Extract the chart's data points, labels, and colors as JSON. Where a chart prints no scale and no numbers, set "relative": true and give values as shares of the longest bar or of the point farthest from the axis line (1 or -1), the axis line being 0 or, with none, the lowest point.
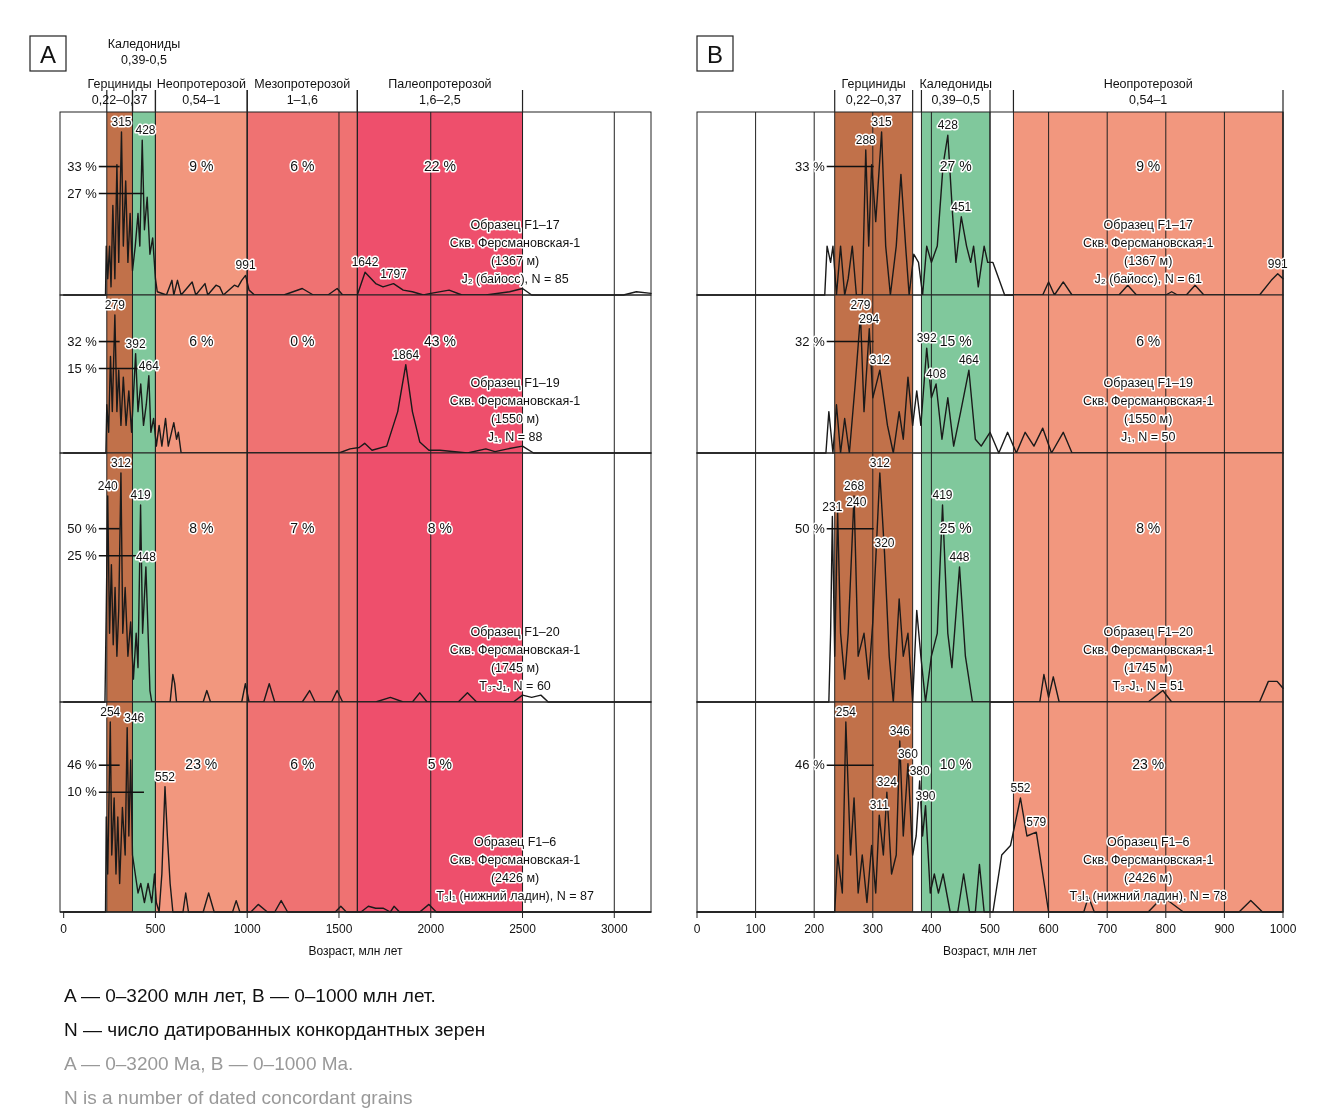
{
  "chart_data": [
    {
      "type": "line",
      "title": "A",
      "relative": true,
      "color": "#1a1a1a",
      "grid": "x",
      "tick_labels": false,
      "xlim": [
        -20,
        3200
      ],
      "xticks": [
        0,
        500,
        1000,
        1500,
        2000,
        2500,
        3000
      ],
      "x": [
        0,
        228,
        232,
        240,
        250,
        258,
        268,
        279,
        290,
        300,
        315,
        325,
        338,
        350,
        362,
        375,
        390,
        405,
        415,
        428,
        440,
        455,
        470,
        485,
        500,
        510,
        560,
        590,
        600,
        620,
        640,
        700,
        720,
        770,
        785,
        830,
        850,
        870,
        930,
        950,
        970,
        991,
        1010,
        1040,
        1200,
        1300,
        1360,
        1440,
        1490,
        1520,
        1600,
        1642,
        1700,
        1740,
        1797,
        1850,
        1900,
        1960,
        2000,
        2100,
        2170,
        2300,
        2430,
        2500,
        2550,
        3050,
        3120,
        3200
      ],
      "values": [
        0,
        0,
        0.3,
        0.1,
        0.3,
        0.05,
        0.55,
        0.1,
        0.8,
        0.2,
        1.0,
        0.3,
        0.7,
        0.2,
        0.5,
        0.15,
        0.3,
        0.5,
        0.3,
        0.95,
        0.4,
        0.6,
        0.25,
        0.35,
        0.1,
        0.02,
        0,
        0.09,
        0,
        0.09,
        0,
        0.08,
        0,
        0.07,
        0,
        0.06,
        0.05,
        0,
        0.06,
        0.05,
        0.09,
        0.12,
        0.03,
        0,
        0,
        0.04,
        0,
        0,
        0.04,
        0,
        0,
        0.14,
        0.07,
        0.05,
        0.07,
        0.03,
        0.02,
        0,
        0.01,
        0.03,
        0,
        0,
        0.02,
        0.04,
        0,
        0,
        0.02,
        0.01
      ],
      "bands": [
        {
          "axis": "x",
          "from": 235,
          "to": 375,
          "color": "#c1714a",
          "label": "33 %"
        },
        {
          "axis": "x",
          "from": 375,
          "to": 500,
          "color": "#80c89c",
          "label": "27 %"
        },
        {
          "axis": "x",
          "from": 500,
          "to": 1000,
          "color": "#f2977e",
          "label": "9 %"
        },
        {
          "axis": "x",
          "from": 1000,
          "to": 1600,
          "color": "#ef7272",
          "label": "6 %"
        },
        {
          "axis": "x",
          "from": 1600,
          "to": 2500,
          "color": "#ee4f6c",
          "label": "22 %"
        }
      ],
      "annotations": [
        "Герциниды\n0,22–0,37",
        "Каледониды\n0,39-0,5",
        "Неопротерозой\n0,54–1",
        "Мезопротерозой\n1–1,6",
        "Палеопротерозой\n1,6–2,5",
        {
          "text": "315",
          "x": 315,
          "y": 1.0
        },
        {
          "text": "428",
          "x": 428,
          "y": 0.95
        },
        {
          "text": "991",
          "x": 991,
          "y": 0.12
        },
        {
          "text": "1642",
          "x": 1642,
          "y": 0.14
        },
        {
          "text": "1797",
          "x": 1797,
          "y": 0.07
        },
        "Образец F1–17\nСкв. Ферсмановская-1\n(1367 м)\nJ₂ (байосс), N = 85"
      ]
    },
    {
      "type": "line",
      "relative": true,
      "color": "#1a1a1a",
      "grid": "x",
      "tick_labels": false,
      "xlim": [
        -20,
        3200
      ],
      "xticks": [
        0,
        500,
        1000,
        1500,
        2000,
        2500,
        3000
      ],
      "x": [
        0,
        230,
        235,
        245,
        255,
        265,
        279,
        290,
        300,
        312,
        325,
        340,
        355,
        370,
        392,
        405,
        420,
        435,
        450,
        464,
        475,
        490,
        505,
        520,
        535,
        555,
        570,
        600,
        615,
        625,
        640,
        1500,
        1560,
        1610,
        1640,
        1680,
        1760,
        1820,
        1864,
        1900,
        1940,
        1990,
        2050,
        2200,
        2300,
        2350,
        2420,
        2500,
        2560,
        3200
      ],
      "values": [
        0,
        0,
        0.35,
        0.15,
        0.7,
        0.3,
        1.0,
        0.3,
        0.6,
        0.2,
        0.55,
        0.2,
        0.45,
        0.15,
        0.72,
        0.3,
        0.5,
        0.2,
        0.35,
        0.56,
        0.15,
        0.25,
        0.05,
        0.2,
        0.05,
        0.25,
        0.05,
        0.22,
        0.1,
        0.15,
        0,
        0,
        0.03,
        0.04,
        0.07,
        0.02,
        0.05,
        0.3,
        0.64,
        0.3,
        0.08,
        0.02,
        0.02,
        0,
        0.03,
        0.01,
        0.03,
        0.05,
        0,
        0
      ],
      "bands": [
        {
          "axis": "x",
          "from": 235,
          "to": 375,
          "color": "#c1714a",
          "label": "32 %"
        },
        {
          "axis": "x",
          "from": 375,
          "to": 500,
          "color": "#80c89c",
          "label": "15 %"
        },
        {
          "axis": "x",
          "from": 500,
          "to": 1000,
          "color": "#f2977e",
          "label": "6 %"
        },
        {
          "axis": "x",
          "from": 1000,
          "to": 1600,
          "color": "#ef7272",
          "label": "0 %"
        },
        {
          "axis": "x",
          "from": 1600,
          "to": 2500,
          "color": "#ee4f6c",
          "label": "43 %"
        }
      ],
      "annotations": [
        {
          "text": "279",
          "x": 279,
          "y": 1.0
        },
        {
          "text": "392",
          "x": 392,
          "y": 0.72
        },
        {
          "text": "464",
          "x": 464,
          "y": 0.56
        },
        {
          "text": "1864",
          "x": 1864,
          "y": 0.64
        },
        "Образец F1–19\nСкв. Ферсмановская-1\n(1550 м)\nJ₁, N = 88"
      ]
    },
    {
      "type": "line",
      "relative": true,
      "color": "#1a1a1a",
      "grid": "x",
      "tick_labels": false,
      "xlim": [
        -20,
        3200
      ],
      "xticks": [
        0,
        500,
        1000,
        1500,
        2000,
        2500,
        3000
      ],
      "x": [
        0,
        225,
        232,
        240,
        250,
        260,
        270,
        280,
        290,
        300,
        312,
        322,
        335,
        350,
        365,
        380,
        395,
        405,
        419,
        430,
        448,
        460,
        470,
        480,
        580,
        595,
        605,
        615,
        760,
        780,
        800,
        970,
        990,
        1010,
        1090,
        1120,
        1150,
        1300,
        1340,
        1370,
        1460,
        1490,
        1520,
        1700,
        1780,
        1850,
        1900,
        1940,
        1980,
        2150,
        2200,
        2250,
        2450,
        2500,
        2550,
        2600,
        2640,
        3200
      ],
      "values": [
        0,
        0,
        0.4,
        0.9,
        0.3,
        0.6,
        0.25,
        0.5,
        0.2,
        0.4,
        1.0,
        0.3,
        0.5,
        0.2,
        0.35,
        0.1,
        0.3,
        0.15,
        0.86,
        0.3,
        0.59,
        0.3,
        0.05,
        0,
        0,
        0.12,
        0.08,
        0,
        0,
        0.05,
        0,
        0,
        0.08,
        0,
        0,
        0.08,
        0,
        0,
        0.05,
        0,
        0,
        0.05,
        0,
        0,
        0.02,
        0,
        0,
        0.04,
        0,
        0,
        0.04,
        0,
        0,
        0.03,
        0.02,
        0.03,
        0,
        0
      ],
      "bands": [
        {
          "axis": "x",
          "from": 235,
          "to": 375,
          "color": "#c1714a",
          "label": "50 %"
        },
        {
          "axis": "x",
          "from": 375,
          "to": 500,
          "color": "#80c89c",
          "label": "25 %"
        },
        {
          "axis": "x",
          "from": 500,
          "to": 1000,
          "color": "#f2977e",
          "label": "8 %"
        },
        {
          "axis": "x",
          "from": 1000,
          "to": 1600,
          "color": "#ef7272",
          "label": "7 %"
        },
        {
          "axis": "x",
          "from": 1600,
          "to": 2500,
          "color": "#ee4f6c",
          "label": "8 %"
        }
      ],
      "annotations": [
        {
          "text": "312",
          "x": 312,
          "y": 1.0
        },
        {
          "text": "240",
          "x": 240,
          "y": 0.9
        },
        {
          "text": "419",
          "x": 419,
          "y": 0.86
        },
        {
          "text": "448",
          "x": 448,
          "y": 0.59
        },
        "Образец F1–20\nСкв. Ферсмановская-1\n(1745 м)\nT₃-J₁, N = 60"
      ]
    },
    {
      "type": "line",
      "relative": true,
      "color": "#1a1a1a",
      "grid": "x",
      "xlabel": "Возраст, млн лет",
      "xlim": [
        -20,
        3200
      ],
      "xticks": [
        0,
        500,
        1000,
        1500,
        2000,
        2500,
        3000
      ],
      "x": [
        0,
        228,
        232,
        240,
        254,
        262,
        275,
        285,
        295,
        305,
        320,
        335,
        346,
        355,
        365,
        375,
        390,
        405,
        420,
        440,
        460,
        480,
        495,
        505,
        520,
        535,
        552,
        565,
        580,
        595,
        650,
        665,
        680,
        760,
        790,
        820,
        920,
        940,
        960,
        1020,
        1060,
        1110,
        1150,
        1185,
        1220,
        1480,
        1510,
        1540,
        1620,
        1660,
        1700,
        1740,
        1780,
        1800,
        1830,
        1940,
        1990,
        2030,
        3200
      ],
      "values": [
        0,
        0,
        0.5,
        0.2,
        1.0,
        0.3,
        0.6,
        0.2,
        0.5,
        0.15,
        0.55,
        0.3,
        0.97,
        0.4,
        0.8,
        0.3,
        0.2,
        0.1,
        0.15,
        0.05,
        0.15,
        0.05,
        0.2,
        0.05,
        0,
        0.2,
        0.66,
        0.4,
        0.15,
        0,
        0,
        0.1,
        0,
        0,
        0.1,
        0,
        0,
        0.06,
        0,
        0,
        0.04,
        0,
        0,
        0.06,
        0,
        0,
        0.03,
        0,
        0,
        0.03,
        0.02,
        0.02,
        0,
        0.03,
        0,
        0,
        0.04,
        0,
        0
      ],
      "bands": [
        {
          "axis": "x",
          "from": 235,
          "to": 375,
          "color": "#c1714a",
          "label": "46 %"
        },
        {
          "axis": "x",
          "from": 375,
          "to": 500,
          "color": "#80c89c",
          "label": "10 %"
        },
        {
          "axis": "x",
          "from": 500,
          "to": 1000,
          "color": "#f2977e",
          "label": "23 %"
        },
        {
          "axis": "x",
          "from": 1000,
          "to": 1600,
          "color": "#ef7272",
          "label": "6 %"
        },
        {
          "axis": "x",
          "from": 1600,
          "to": 2500,
          "color": "#ee4f6c",
          "label": "5 %"
        }
      ],
      "annotations": [
        {
          "text": "254",
          "x": 254,
          "y": 1.0
        },
        {
          "text": "346",
          "x": 346,
          "y": 0.97
        },
        {
          "text": "552",
          "x": 552,
          "y": 0.66
        },
        "Образец F1–6\nСкв. Ферсмановская-1\n(2426 м)\nT₃l₁ (нижний ладин), N = 87",
        "A — 0–3200 млн лет, B — 0–1000 млн лет.",
        "N — число датированных конкордантных зерен",
        "A — 0–3200 Ma, B — 0–1000 Ma.",
        "N is a number of dated concordant grains"
      ]
    },
    {
      "type": "line",
      "title": "B",
      "relative": true,
      "color": "#1a1a1a",
      "grid": "x",
      "tick_labels": false,
      "xlim": [
        0,
        1000
      ],
      "xticks": [
        0,
        100,
        200,
        300,
        400,
        500,
        600,
        700,
        800,
        900,
        1000
      ],
      "x": [
        0,
        218,
        222,
        228,
        232,
        238,
        245,
        252,
        258,
        265,
        272,
        282,
        288,
        293,
        298,
        305,
        315,
        322,
        330,
        340,
        348,
        356,
        362,
        370,
        378,
        385,
        392,
        400,
        410,
        420,
        428,
        436,
        442,
        451,
        460,
        467,
        472,
        480,
        490,
        496,
        505,
        515,
        525,
        590,
        600,
        610,
        625,
        640,
        720,
        735,
        750,
        800,
        810,
        820,
        835,
        850,
        865,
        960,
        980,
        991,
        1000
      ],
      "values": [
        0,
        0,
        0.3,
        0.2,
        0.3,
        0,
        0.3,
        0,
        0.1,
        0.3,
        0,
        0,
        0.89,
        0.3,
        0.8,
        0.45,
        1.0,
        0.3,
        0,
        0.3,
        0.74,
        0.3,
        0,
        0.25,
        0.2,
        0,
        0.3,
        0.2,
        0.3,
        0.8,
        0.98,
        0.5,
        0.2,
        0.48,
        0.3,
        0.2,
        0.3,
        0.05,
        0.3,
        0.2,
        0.2,
        0.1,
        0,
        0,
        0.08,
        0,
        0.08,
        0,
        0,
        0.06,
        0,
        0,
        0.02,
        0,
        0,
        0.06,
        0,
        0,
        0.09,
        0.13,
        0.1
      ],
      "bands": [
        {
          "axis": "x",
          "from": 235,
          "to": 368,
          "color": "#c1714a",
          "label": "33 %"
        },
        {
          "axis": "x",
          "from": 383,
          "to": 500,
          "color": "#80c89c",
          "label": "27 %"
        },
        {
          "axis": "x",
          "from": 540,
          "to": 1000,
          "color": "#f2977e",
          "label": "9 %"
        }
      ],
      "annotations": [
        "Герциниды\n0,22–0,37",
        "Каледониды\n0,39–0,5",
        "Неопротерозой\n0,54–1",
        {
          "text": "288",
          "x": 288,
          "y": 0.89
        },
        {
          "text": "315",
          "x": 315,
          "y": 1.0
        },
        {
          "text": "428",
          "x": 428,
          "y": 0.98
        },
        {
          "text": "451",
          "x": 451,
          "y": 0.48
        },
        {
          "text": "991",
          "x": 991,
          "y": 0.13
        },
        "Образец F1–17\nСкв. Ферсмановская-1\n(1367 м)\nJ₂ (байосс), N = 61"
      ]
    },
    {
      "type": "line",
      "relative": true,
      "color": "#1a1a1a",
      "grid": "x",
      "tick_labels": false,
      "xlim": [
        0,
        1000
      ],
      "xticks": [
        0,
        100,
        200,
        300,
        400,
        500,
        600,
        700,
        800,
        900,
        1000
      ],
      "x": [
        0,
        220,
        225,
        232,
        238,
        245,
        252,
        260,
        270,
        279,
        285,
        294,
        300,
        312,
        325,
        335,
        345,
        352,
        360,
        368,
        375,
        382,
        392,
        400,
        408,
        418,
        428,
        438,
        450,
        464,
        475,
        485,
        500,
        515,
        530,
        545,
        560,
        575,
        590,
        605,
        625,
        640,
        1000
      ],
      "values": [
        0,
        0,
        0.3,
        0,
        0.35,
        0,
        0.25,
        0,
        0.5,
        1.0,
        0.3,
        0.9,
        0.4,
        0.6,
        0.2,
        0,
        0.3,
        0.1,
        0.55,
        0.2,
        0.45,
        0.2,
        0.76,
        0.4,
        0.5,
        0.1,
        0.4,
        0.05,
        0.3,
        0.6,
        0.1,
        0.05,
        0.15,
        0,
        0.15,
        0,
        0.15,
        0.05,
        0.18,
        0,
        0.15,
        0,
        0
      ],
      "bands": [
        {
          "axis": "x",
          "from": 235,
          "to": 368,
          "color": "#c1714a",
          "label": "32 %"
        },
        {
          "axis": "x",
          "from": 383,
          "to": 500,
          "color": "#80c89c",
          "label": "15 %"
        },
        {
          "axis": "x",
          "from": 540,
          "to": 1000,
          "color": "#f2977e",
          "label": "6 %"
        }
      ],
      "annotations": [
        {
          "text": "279",
          "x": 279,
          "y": 1.0
        },
        {
          "text": "294",
          "x": 294,
          "y": 0.9
        },
        {
          "text": "312",
          "x": 312,
          "y": 0.6
        },
        {
          "text": "392",
          "x": 392,
          "y": 0.76
        },
        {
          "text": "408",
          "x": 408,
          "y": 0.5
        },
        {
          "text": "464",
          "x": 464,
          "y": 0.6
        },
        "Образец F1–19\nСкв. Ферсмановская-1\n(1550 м)\nJ₁, N = 50"
      ]
    },
    {
      "type": "line",
      "relative": true,
      "color": "#1a1a1a",
      "grid": "x",
      "tick_labels": false,
      "xlim": [
        0,
        1000
      ],
      "xticks": [
        0,
        100,
        200,
        300,
        400,
        500,
        600,
        700,
        800,
        900,
        1000
      ],
      "x": [
        0,
        225,
        228,
        231,
        235,
        240,
        245,
        252,
        258,
        268,
        275,
        285,
        293,
        300,
        312,
        320,
        328,
        335,
        345,
        352,
        360,
        368,
        375,
        382,
        390,
        400,
        410,
        419,
        428,
        435,
        448,
        458,
        470,
        585,
        592,
        600,
        608,
        618,
        770,
        780,
        795,
        810,
        960,
        975,
        990,
        1000
      ],
      "values": [
        0,
        0,
        0.3,
        0.81,
        0.2,
        0.83,
        0.3,
        0.1,
        0.3,
        0.9,
        0.2,
        0.3,
        0.1,
        0.35,
        1.0,
        0.65,
        0.2,
        0,
        0.45,
        0.2,
        0.3,
        0,
        0.4,
        0.2,
        0,
        0.2,
        0.3,
        0.86,
        0.3,
        0.15,
        0.59,
        0.2,
        0,
        0,
        0.12,
        0.02,
        0.11,
        0,
        0,
        0.02,
        0.05,
        0,
        0,
        0.09,
        0.09,
        0.06
      ],
      "bands": [
        {
          "axis": "x",
          "from": 235,
          "to": 368,
          "color": "#c1714a",
          "label": "50 %"
        },
        {
          "axis": "x",
          "from": 383,
          "to": 500,
          "color": "#80c89c",
          "label": "25 %"
        },
        {
          "axis": "x",
          "from": 540,
          "to": 1000,
          "color": "#f2977e",
          "label": "8 %"
        }
      ],
      "annotations": [
        {
          "text": "231",
          "x": 231,
          "y": 0.81
        },
        {
          "text": "240",
          "x": 240,
          "y": 0.83
        },
        {
          "text": "268",
          "x": 268,
          "y": 0.9
        },
        {
          "text": "312",
          "x": 312,
          "y": 1.0
        },
        {
          "text": "320",
          "x": 320,
          "y": 0.65
        },
        {
          "text": "419",
          "x": 419,
          "y": 0.86
        },
        {
          "text": "448",
          "x": 448,
          "y": 0.59
        },
        "Образец F1–20\nСкв. Ферсмановская-1\n(1745 м)\nT₃-J₁, N = 51"
      ]
    },
    {
      "type": "line",
      "relative": true,
      "color": "#1a1a1a",
      "grid": "x",
      "xlabel": "Возраст, млн лет",
      "xlim": [
        0,
        1000
      ],
      "xticks": [
        0,
        100,
        200,
        300,
        400,
        500,
        600,
        700,
        800,
        900,
        1000
      ],
      "x": [
        0,
        235,
        240,
        248,
        254,
        262,
        268,
        275,
        282,
        290,
        298,
        305,
        311,
        318,
        324,
        332,
        340,
        346,
        352,
        360,
        368,
        374,
        380,
        385,
        390,
        398,
        405,
        412,
        420,
        432,
        445,
        455,
        465,
        475,
        482,
        490,
        505,
        520,
        535,
        552,
        563,
        579,
        590,
        600,
        660,
        668,
        678,
        770,
        795,
        830,
        925,
        945,
        965,
        1000
      ],
      "values": [
        0,
        0,
        0.3,
        0.1,
        1.0,
        0.3,
        0.6,
        0.1,
        0.3,
        0.05,
        0.35,
        0.1,
        0.51,
        0.3,
        0.63,
        0.2,
        0.3,
        0.9,
        0.4,
        0.78,
        0.3,
        0.4,
        0.69,
        0.4,
        0.56,
        0.1,
        0.2,
        0.1,
        0.2,
        0,
        0,
        0.2,
        0,
        0,
        0.25,
        0,
        0,
        0.3,
        0.35,
        0.6,
        0.4,
        0.42,
        0.2,
        0,
        0,
        0.08,
        0,
        0,
        0.08,
        0,
        0,
        0.06,
        0,
        0
      ],
      "bands": [
        {
          "axis": "x",
          "from": 235,
          "to": 368,
          "color": "#c1714a",
          "label": "46 %"
        },
        {
          "axis": "x",
          "from": 383,
          "to": 500,
          "color": "#80c89c",
          "label": "10 %"
        },
        {
          "axis": "x",
          "from": 540,
          "to": 1000,
          "color": "#f2977e",
          "label": "23 %"
        }
      ],
      "annotations": [
        {
          "text": "254",
          "x": 254,
          "y": 1.0
        },
        {
          "text": "311",
          "x": 311,
          "y": 0.51
        },
        {
          "text": "324",
          "x": 324,
          "y": 0.63
        },
        {
          "text": "346",
          "x": 346,
          "y": 0.9
        },
        {
          "text": "360",
          "x": 360,
          "y": 0.78
        },
        {
          "text": "380",
          "x": 380,
          "y": 0.69
        },
        {
          "text": "390",
          "x": 390,
          "y": 0.56
        },
        {
          "text": "552",
          "x": 552,
          "y": 0.6
        },
        {
          "text": "579",
          "x": 579,
          "y": 0.42
        },
        "Образец F1–6\nСкв. Ферсмановская-1\n(2426 м)\nT₃l₁ (нижний ладин), N = 78"
      ]
    }
  ]
}
